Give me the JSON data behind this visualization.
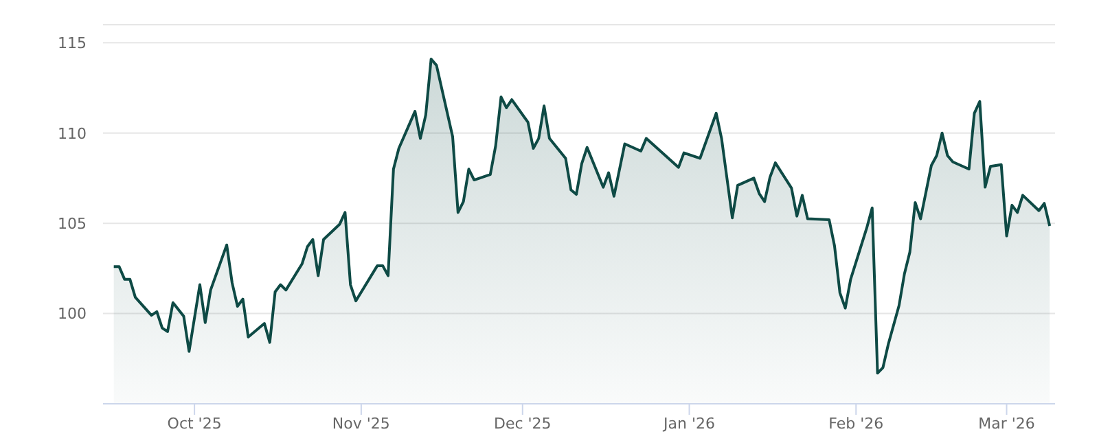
{
  "chart_data": {
    "type": "area",
    "x": [
      "2025-09-16",
      "2025-09-17",
      "2025-09-18",
      "2025-09-19",
      "2025-09-20",
      "2025-09-23",
      "2025-09-24",
      "2025-09-25",
      "2025-09-26",
      "2025-09-27",
      "2025-09-29",
      "2025-09-30",
      "2025-10-02",
      "2025-10-03",
      "2025-10-04",
      "2025-10-07",
      "2025-10-08",
      "2025-10-09",
      "2025-10-10",
      "2025-10-11",
      "2025-10-14",
      "2025-10-15",
      "2025-10-16",
      "2025-10-17",
      "2025-10-18",
      "2025-10-21",
      "2025-10-22",
      "2025-10-23",
      "2025-10-24",
      "2025-10-25",
      "2025-10-28",
      "2025-10-29",
      "2025-10-30",
      "2025-10-31",
      "2025-11-04",
      "2025-11-05",
      "2025-11-06",
      "2025-11-07",
      "2025-11-08",
      "2025-11-11",
      "2025-11-12",
      "2025-11-13",
      "2025-11-14",
      "2025-11-15",
      "2025-11-18",
      "2025-11-19",
      "2025-11-20",
      "2025-11-21",
      "2025-11-22",
      "2025-11-25",
      "2025-11-26",
      "2025-11-27",
      "2025-11-28",
      "2025-11-29",
      "2025-12-02",
      "2025-12-03",
      "2025-12-04",
      "2025-12-05",
      "2025-12-06",
      "2025-12-09",
      "2025-12-10",
      "2025-12-11",
      "2025-12-12",
      "2025-12-13",
      "2025-12-16",
      "2025-12-17",
      "2025-12-18",
      "2025-12-20",
      "2025-12-23",
      "2025-12-24",
      "2025-12-30",
      "2025-12-31",
      "2026-01-03",
      "2026-01-06",
      "2026-01-07",
      "2026-01-09",
      "2026-01-10",
      "2026-01-13",
      "2026-01-14",
      "2026-01-15",
      "2026-01-16",
      "2026-01-17",
      "2026-01-20",
      "2026-01-21",
      "2026-01-22",
      "2026-01-23",
      "2026-01-27",
      "2026-01-28",
      "2026-01-29",
      "2026-01-30",
      "2026-01-31",
      "2026-02-03",
      "2026-02-04",
      "2026-02-05",
      "2026-02-06",
      "2026-02-07",
      "2026-02-09",
      "2026-02-10",
      "2026-02-11",
      "2026-02-12",
      "2026-02-13",
      "2026-02-15",
      "2026-02-16",
      "2026-02-17",
      "2026-02-18",
      "2026-02-19",
      "2026-02-22",
      "2026-02-23",
      "2026-02-24",
      "2026-02-25",
      "2026-02-26",
      "2026-02-28",
      "2026-03-01",
      "2026-03-02",
      "2026-03-03",
      "2026-03-04",
      "2026-03-07",
      "2026-03-08",
      "2026-03-09"
    ],
    "values": [
      102.6,
      102.6,
      101.9,
      101.9,
      100.9,
      99.9,
      100.1,
      99.2,
      99.0,
      100.6,
      99.85,
      97.9,
      101.6,
      99.5,
      101.3,
      103.8,
      101.7,
      100.4,
      100.8,
      98.7,
      99.45,
      98.4,
      101.2,
      101.6,
      101.3,
      102.75,
      103.7,
      104.1,
      102.1,
      104.1,
      104.95,
      105.6,
      101.6,
      100.7,
      102.65,
      102.65,
      102.1,
      108.0,
      109.15,
      111.2,
      109.7,
      111.0,
      114.1,
      113.75,
      109.8,
      105.6,
      106.2,
      108.0,
      107.4,
      107.7,
      109.3,
      112.0,
      111.4,
      111.85,
      110.6,
      109.15,
      109.7,
      111.5,
      109.7,
      108.6,
      106.85,
      106.6,
      108.3,
      109.2,
      107.0,
      107.8,
      106.5,
      109.4,
      109.0,
      109.7,
      108.1,
      108.9,
      108.6,
      111.1,
      109.7,
      105.3,
      107.1,
      107.5,
      106.65,
      106.2,
      107.55,
      108.35,
      106.95,
      105.4,
      106.55,
      105.25,
      105.2,
      103.75,
      101.15,
      100.3,
      101.9,
      104.75,
      105.85,
      96.7,
      97.0,
      98.3,
      100.45,
      102.2,
      103.4,
      106.15,
      105.25,
      108.2,
      108.75,
      110.0,
      108.75,
      108.4,
      108.0,
      111.1,
      111.75,
      107.0,
      108.15,
      108.25,
      104.3,
      106.0,
      105.6,
      106.55,
      105.7,
      106.1,
      104.85
    ],
    "color": "#0e4a45",
    "xlim": [
      "2025-09-14",
      "2026-03-10"
    ],
    "xticks": [
      {
        "value": "2025-10-01",
        "label": "Oct '25"
      },
      {
        "value": "2025-11-01",
        "label": "Nov '25"
      },
      {
        "value": "2025-12-01",
        "label": "Dec '25"
      },
      {
        "value": "2026-01-01",
        "label": "Jan '26"
      },
      {
        "value": "2026-02-01",
        "label": "Feb '26"
      },
      {
        "value": "2026-03-01",
        "label": "Mar '26"
      }
    ],
    "ylim": [
      95,
      116
    ],
    "yticks": [
      100,
      105,
      110,
      115
    ],
    "grid": "y",
    "marker": "none",
    "line_style": "solid"
  }
}
